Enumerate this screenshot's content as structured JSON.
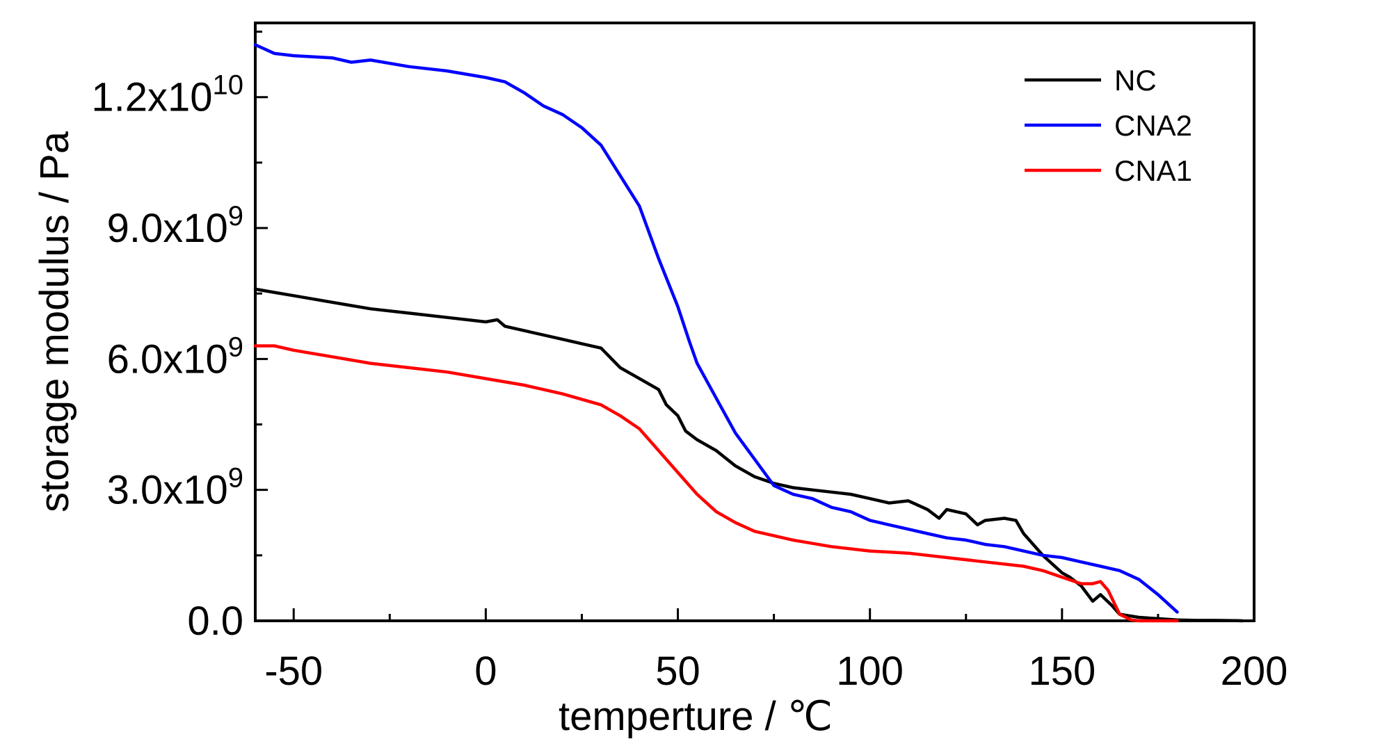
{
  "chart_data": {
    "type": "line",
    "xlabel": "temperture / ℃",
    "ylabel": "storage modulus / Pa",
    "xlim": [
      -60,
      200
    ],
    "ylim": [
      0,
      13700000000
    ],
    "x_ticks": [
      -50,
      0,
      50,
      100,
      150,
      200
    ],
    "x_tick_labels": [
      "-50",
      "0",
      "50",
      "100",
      "150",
      "200"
    ],
    "y_ticks": [
      0,
      3000000000,
      6000000000,
      9000000000,
      12000000000
    ],
    "y_tick_labels": [
      {
        "mantissa": "0.0",
        "exponent": ""
      },
      {
        "mantissa": "3.0x10",
        "exponent": "9"
      },
      {
        "mantissa": "6.0x10",
        "exponent": "9"
      },
      {
        "mantissa": "9.0x10",
        "exponent": "9"
      },
      {
        "mantissa": "1.2x10",
        "exponent": "10"
      }
    ],
    "grid": false,
    "legend_position": "top-right",
    "series": [
      {
        "name": "NC",
        "color": "#000000",
        "x": [
          -60,
          -50,
          -40,
          -30,
          -20,
          -10,
          0,
          3,
          5,
          10,
          20,
          25,
          30,
          35,
          40,
          45,
          47,
          50,
          52,
          55,
          60,
          65,
          70,
          75,
          80,
          85,
          90,
          95,
          100,
          105,
          110,
          115,
          118,
          120,
          125,
          128,
          130,
          135,
          138,
          140,
          145,
          150,
          152,
          155,
          158,
          160,
          163,
          165,
          170,
          175,
          180,
          185,
          190,
          195,
          197
        ],
        "y": [
          7600000000,
          7450000000,
          7300000000,
          7150000000,
          7050000000,
          6950000000,
          6850000000,
          6900000000,
          6750000000,
          6650000000,
          6450000000,
          6350000000,
          6250000000,
          5800000000,
          5550000000,
          5300000000,
          4950000000,
          4700000000,
          4350000000,
          4150000000,
          3900000000,
          3550000000,
          3300000000,
          3150000000,
          3050000000,
          3000000000,
          2950000000,
          2900000000,
          2800000000,
          2700000000,
          2750000000,
          2550000000,
          2350000000,
          2550000000,
          2450000000,
          2200000000,
          2300000000,
          2350000000,
          2300000000,
          2000000000,
          1500000000,
          1100000000,
          1000000000,
          800000000,
          450000000,
          600000000,
          350000000,
          150000000,
          80000000,
          50000000,
          20000000,
          10000000,
          10000000,
          5000000,
          0
        ]
      },
      {
        "name": "CNA2",
        "color": "#0000ff",
        "x": [
          -60,
          -55,
          -50,
          -40,
          -35,
          -30,
          -20,
          -10,
          0,
          5,
          10,
          15,
          20,
          25,
          30,
          35,
          40,
          45,
          50,
          53,
          55,
          60,
          65,
          70,
          75,
          80,
          85,
          90,
          95,
          100,
          105,
          110,
          115,
          120,
          125,
          130,
          135,
          140,
          145,
          150,
          155,
          160,
          165,
          170,
          175,
          180
        ],
        "y": [
          13200000000,
          13000000000,
          12950000000,
          12900000000,
          12800000000,
          12850000000,
          12700000000,
          12600000000,
          12450000000,
          12350000000,
          12100000000,
          11800000000,
          11600000000,
          11300000000,
          10900000000,
          10200000000,
          9500000000,
          8300000000,
          7200000000,
          6400000000,
          5900000000,
          5100000000,
          4300000000,
          3700000000,
          3100000000,
          2900000000,
          2800000000,
          2600000000,
          2500000000,
          2300000000,
          2200000000,
          2100000000,
          2000000000,
          1900000000,
          1850000000,
          1750000000,
          1700000000,
          1600000000,
          1500000000,
          1450000000,
          1350000000,
          1250000000,
          1150000000,
          950000000,
          600000000,
          200000000
        ]
      },
      {
        "name": "CNA1",
        "color": "#ff0000",
        "x": [
          -60,
          -55,
          -50,
          -40,
          -30,
          -20,
          -10,
          0,
          10,
          20,
          30,
          35,
          40,
          45,
          50,
          55,
          60,
          65,
          70,
          75,
          80,
          90,
          100,
          110,
          120,
          130,
          140,
          145,
          150,
          155,
          158,
          160,
          162,
          165,
          168,
          170,
          175,
          180
        ],
        "y": [
          6300000000,
          6300000000,
          6200000000,
          6050000000,
          5900000000,
          5800000000,
          5700000000,
          5550000000,
          5400000000,
          5200000000,
          4950000000,
          4700000000,
          4400000000,
          3900000000,
          3400000000,
          2900000000,
          2500000000,
          2250000000,
          2050000000,
          1950000000,
          1850000000,
          1700000000,
          1600000000,
          1550000000,
          1450000000,
          1350000000,
          1250000000,
          1150000000,
          1000000000,
          850000000,
          850000000,
          900000000,
          700000000,
          150000000,
          20000000,
          0,
          0,
          0
        ]
      }
    ]
  }
}
